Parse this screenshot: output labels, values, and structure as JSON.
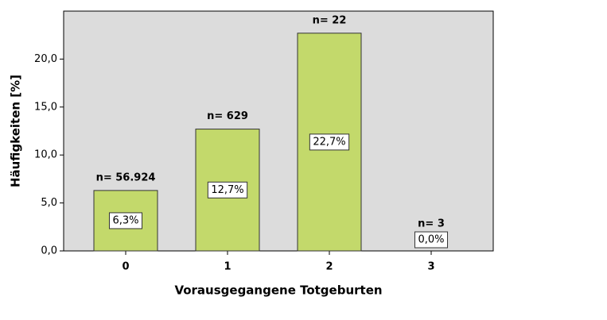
{
  "chart_data": {
    "type": "bar",
    "categories": [
      "0",
      "1",
      "2",
      "3"
    ],
    "values": [
      6.3,
      12.7,
      22.7,
      0.0
    ],
    "value_labels": [
      "6,3%",
      "12,7%",
      "22,7%",
      "0,0%"
    ],
    "count_labels": [
      "n= 56.924",
      "n= 629",
      "n= 22",
      "n= 3"
    ],
    "color": "#c3d96b",
    "x_label": "Vorausgegangene Totgeburten",
    "y_label": "Häufigkeiten [%]",
    "ylim": [
      0,
      25
    ],
    "yticks": [
      {
        "value": 0,
        "label": "0,0"
      },
      {
        "value": 5,
        "label": "5,0"
      },
      {
        "value": 10,
        "label": "10,0"
      },
      {
        "value": 15,
        "label": "15,0"
      },
      {
        "value": 20,
        "label": "20,0"
      }
    ]
  }
}
